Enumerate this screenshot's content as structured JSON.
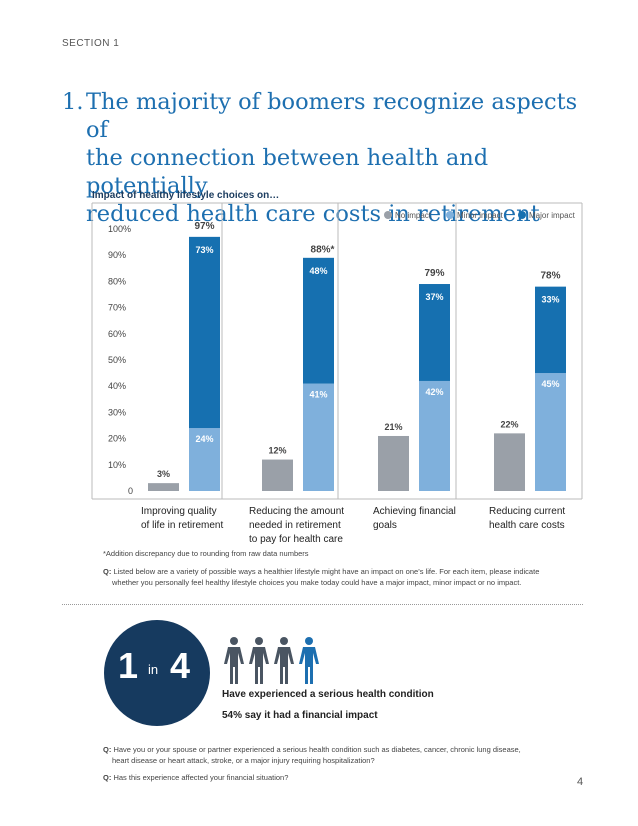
{
  "section_label": "SECTION 1",
  "headline": {
    "number": "1.",
    "lines": [
      "The majority of boomers recognize aspects of",
      "the connection between health and potentially",
      "reduced health care costs in retirement"
    ]
  },
  "chart_data": {
    "type": "bar",
    "title": "Impact of healthy lifestyle choices on…",
    "legend_position": "top-right",
    "categories": [
      [
        "Improving quality",
        "of life in retirement"
      ],
      [
        "Reducing the amount",
        "needed in retirement",
        "to pay for health care"
      ],
      [
        "Achieving financial",
        "goals"
      ],
      [
        "Reducing current",
        "health care costs"
      ]
    ],
    "y_ticks": [
      "0",
      "10%",
      "20%",
      "30%",
      "40%",
      "50%",
      "60%",
      "70%",
      "80%",
      "90%",
      "100%"
    ],
    "ylim": [
      0,
      100
    ],
    "series": [
      {
        "name": "No impact",
        "color": "#9aa0a8",
        "values": [
          3,
          12,
          21,
          22
        ],
        "labels": [
          "3%",
          "12%",
          "21%",
          "22%"
        ]
      },
      {
        "name": "Minor impact",
        "color": "#7fb0dc",
        "values": [
          24,
          41,
          42,
          45
        ],
        "labels": [
          "24%",
          "41%",
          "42%",
          "45%"
        ]
      },
      {
        "name": "Major impact",
        "color": "#1670b0",
        "values": [
          73,
          48,
          37,
          33
        ],
        "labels": [
          "73%",
          "48%",
          "37%",
          "33%"
        ]
      }
    ],
    "totals": [
      "97%",
      "88%*",
      "79%",
      "78%"
    ],
    "total_values": [
      97,
      88,
      79,
      78
    ]
  },
  "footnote": "*Addition discrepancy due to rounding from raw data numbers",
  "question1": {
    "prefix": "Q:",
    "line1": "Listed below are a variety of possible ways a healthier lifestyle might have an impact on one’s life. For each item, please indicate",
    "line2": "whether you personally feel healthy lifestyle choices you make today could have a major impact, minor impact or no impact."
  },
  "stat": {
    "big1": "1",
    "in": "in",
    "big2": "4",
    "line1": "Have experienced a serious health condition",
    "line2": "54% say it had a financial impact",
    "people_icon": "person-icon",
    "people_color": "#4a5562",
    "highlight_color": "#1d6fb0"
  },
  "question2": {
    "prefix": "Q:",
    "line1": "Have you or your spouse or partner experienced a serious health condition such as diabetes, cancer, chronic lung disease,",
    "line2": "heart disease or heart attack, stroke, or a major injury requiring hospitalization?"
  },
  "question3": {
    "prefix": "Q:",
    "line1": "Has this experience affected your financial situation?"
  },
  "page_number": "4"
}
